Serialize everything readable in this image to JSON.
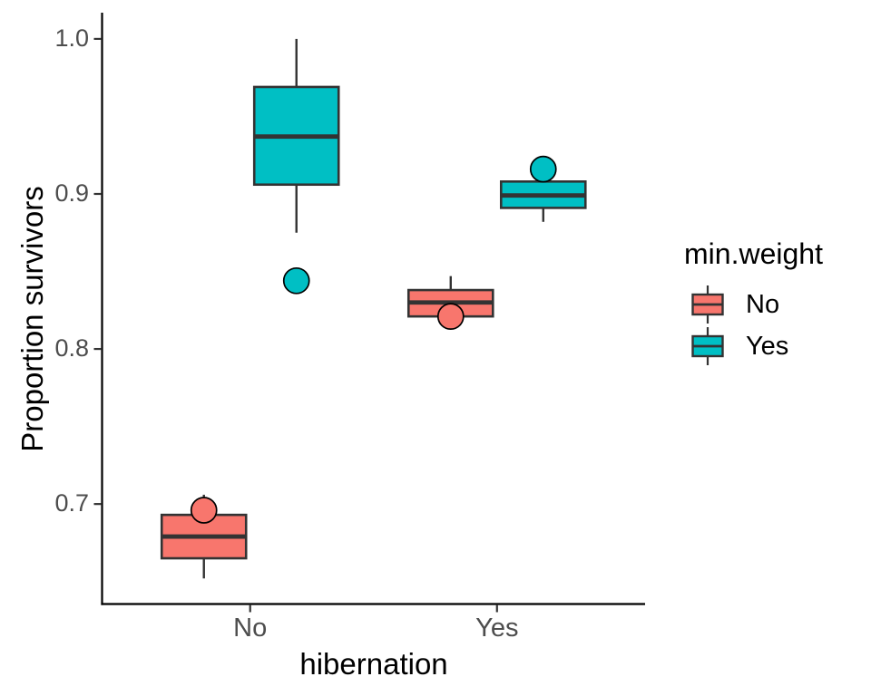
{
  "chart_data": {
    "type": "boxplot",
    "title": "",
    "xlabel": "hibernation",
    "ylabel": "Proportion survivors",
    "categories": [
      "No",
      "Yes"
    ],
    "ylim": [
      0.6355,
      1.0169
    ],
    "yticks": [
      {
        "value": 1.0,
        "label": "1.0"
      },
      {
        "value": 0.9,
        "label": "0.9"
      },
      {
        "value": 0.8,
        "label": "0.8"
      },
      {
        "value": 0.7,
        "label": "0.7"
      }
    ],
    "grid": "off",
    "legend": {
      "title": "min.weight",
      "position": "right",
      "items": [
        {
          "label": "No",
          "color": "#F8766D"
        },
        {
          "label": "Yes",
          "color": "#00BFC4"
        }
      ]
    },
    "series": [
      {
        "name": "No",
        "color": "#F8766D",
        "boxes": [
          {
            "category": "No",
            "whisker_low": 0.652,
            "q1": 0.665,
            "median": 0.679,
            "q3": 0.693,
            "whisker_high": 0.706,
            "point": 0.696
          },
          {
            "category": "Yes",
            "whisker_low": 0.821,
            "q1": 0.821,
            "median": 0.83,
            "q3": 0.838,
            "whisker_high": 0.847,
            "point": 0.821
          }
        ]
      },
      {
        "name": "Yes",
        "color": "#00BFC4",
        "boxes": [
          {
            "category": "No",
            "whisker_low": 0.875,
            "q1": 0.906,
            "median": 0.937,
            "q3": 0.969,
            "whisker_high": 1.0,
            "point": 0.844
          },
          {
            "category": "Yes",
            "whisker_low": 0.882,
            "q1": 0.891,
            "median": 0.899,
            "q3": 0.908,
            "whisker_high": 0.908,
            "point": 0.916
          }
        ]
      }
    ],
    "styles": {
      "box_outline": "#333333",
      "median_color": "#333333",
      "point_outline": "#000000",
      "axis_color": "#000000",
      "tick_color": "#333333",
      "tick_text_color": "#4D4D4D",
      "background": "#FFFFFF"
    }
  }
}
